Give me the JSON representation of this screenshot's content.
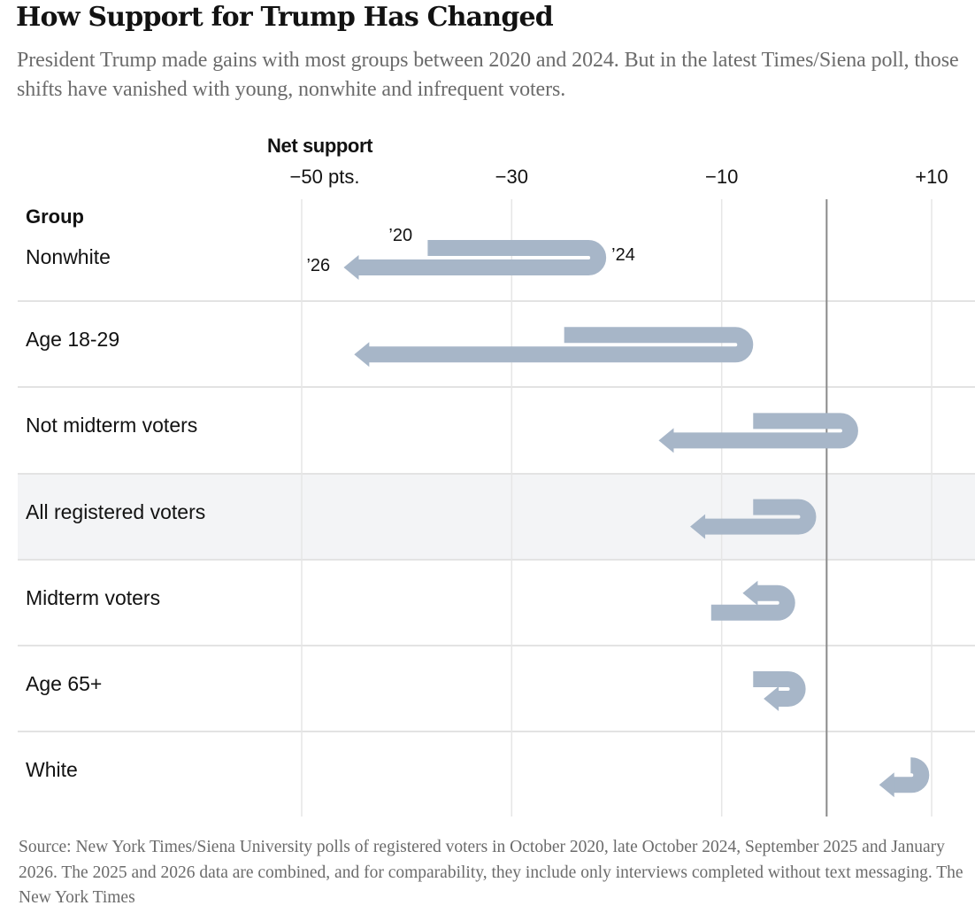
{
  "header": {
    "title": "How Support for Trump Has Changed",
    "subtitle": "President Trump made gains with most groups between 2020 and 2024. But in the latest Times/Siena poll, those shifts have vanished with young, nonwhite and infrequent voters."
  },
  "footer": {
    "source": "Source: New York Times/Siena University polls of registered voters in October 2020, late October 2024, September 2025 and January 2026. The 2025 and 2026 data are combined, and for comparability, they include only interviews completed without text messaging.  The New York Times"
  },
  "chart_data": {
    "type": "arrow-dumbbell",
    "title": "How Support for Trump Has Changed",
    "xlabel": "Net support",
    "ylabel": "Group",
    "xlim": [
      -55,
      13
    ],
    "xticks": [
      {
        "value": -50,
        "label": "−50 pts."
      },
      {
        "value": -30,
        "label": "−30"
      },
      {
        "value": -10,
        "label": "−10"
      },
      {
        "value": 10,
        "label": "+10"
      }
    ],
    "zero_line": 0,
    "grid": true,
    "highlighted_group": "All registered voters",
    "year_labels": {
      "start": "’20",
      "middle": "’24",
      "end": "’26"
    },
    "series_names": [
      "2020",
      "2024",
      "2026"
    ],
    "color": "#a7b6c8",
    "groups": [
      {
        "name": "Nonwhite",
        "y2020": -38,
        "y2024": -21,
        "y2026": -46
      },
      {
        "name": "Age 18-29",
        "y2020": -25,
        "y2024": -7,
        "y2026": -45
      },
      {
        "name": "Not midterm voters",
        "y2020": -7,
        "y2024": 3,
        "y2026": -16
      },
      {
        "name": "All registered voters",
        "y2020": -7,
        "y2024": -1,
        "y2026": -13
      },
      {
        "name": "Midterm voters",
        "y2020": -11,
        "y2024": -3,
        "y2026": -8
      },
      {
        "name": "Age 65+",
        "y2020": -7,
        "y2024": -2,
        "y2026": -6
      },
      {
        "name": "White",
        "y2020": 8,
        "y2024": 8,
        "y2026": 5
      }
    ]
  }
}
